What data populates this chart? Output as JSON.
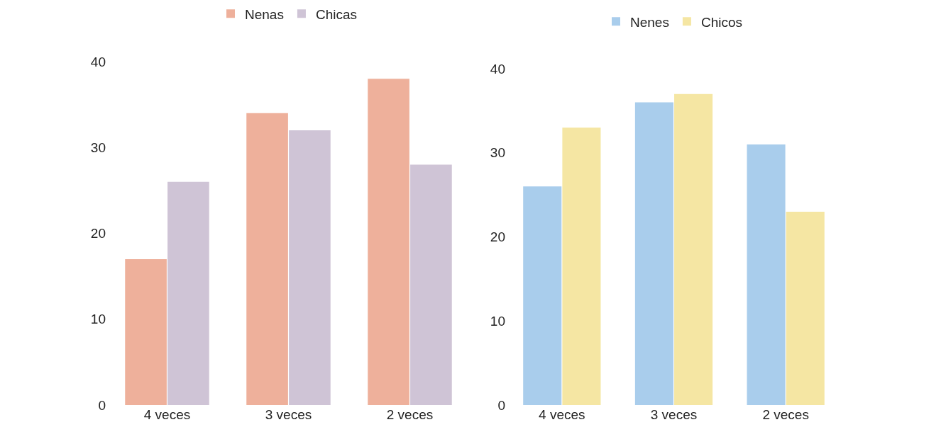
{
  "chart_data": [
    {
      "type": "bar",
      "categories": [
        "4 veces",
        "3 veces",
        "2 veces"
      ],
      "series": [
        {
          "name": "Nenas",
          "color": "#eeb09b",
          "values": [
            17,
            34,
            38
          ]
        },
        {
          "name": "Chicas",
          "color": "#cfc4d6",
          "values": [
            26,
            32,
            28
          ]
        }
      ],
      "ylim": [
        0,
        40
      ],
      "yticks": [
        0,
        10,
        20,
        30,
        40
      ],
      "grid": false,
      "legend": "top"
    },
    {
      "type": "bar",
      "categories": [
        "4 veces",
        "3 veces",
        "2 veces"
      ],
      "series": [
        {
          "name": "Nenes",
          "color": "#a9cdec",
          "values": [
            26,
            36,
            31
          ]
        },
        {
          "name": "Chicos",
          "color": "#f5e6a3",
          "values": [
            33,
            37,
            23
          ]
        }
      ],
      "ylim": [
        0,
        40
      ],
      "yticks": [
        0,
        10,
        20,
        30,
        40
      ],
      "grid": false,
      "legend": "top"
    }
  ]
}
